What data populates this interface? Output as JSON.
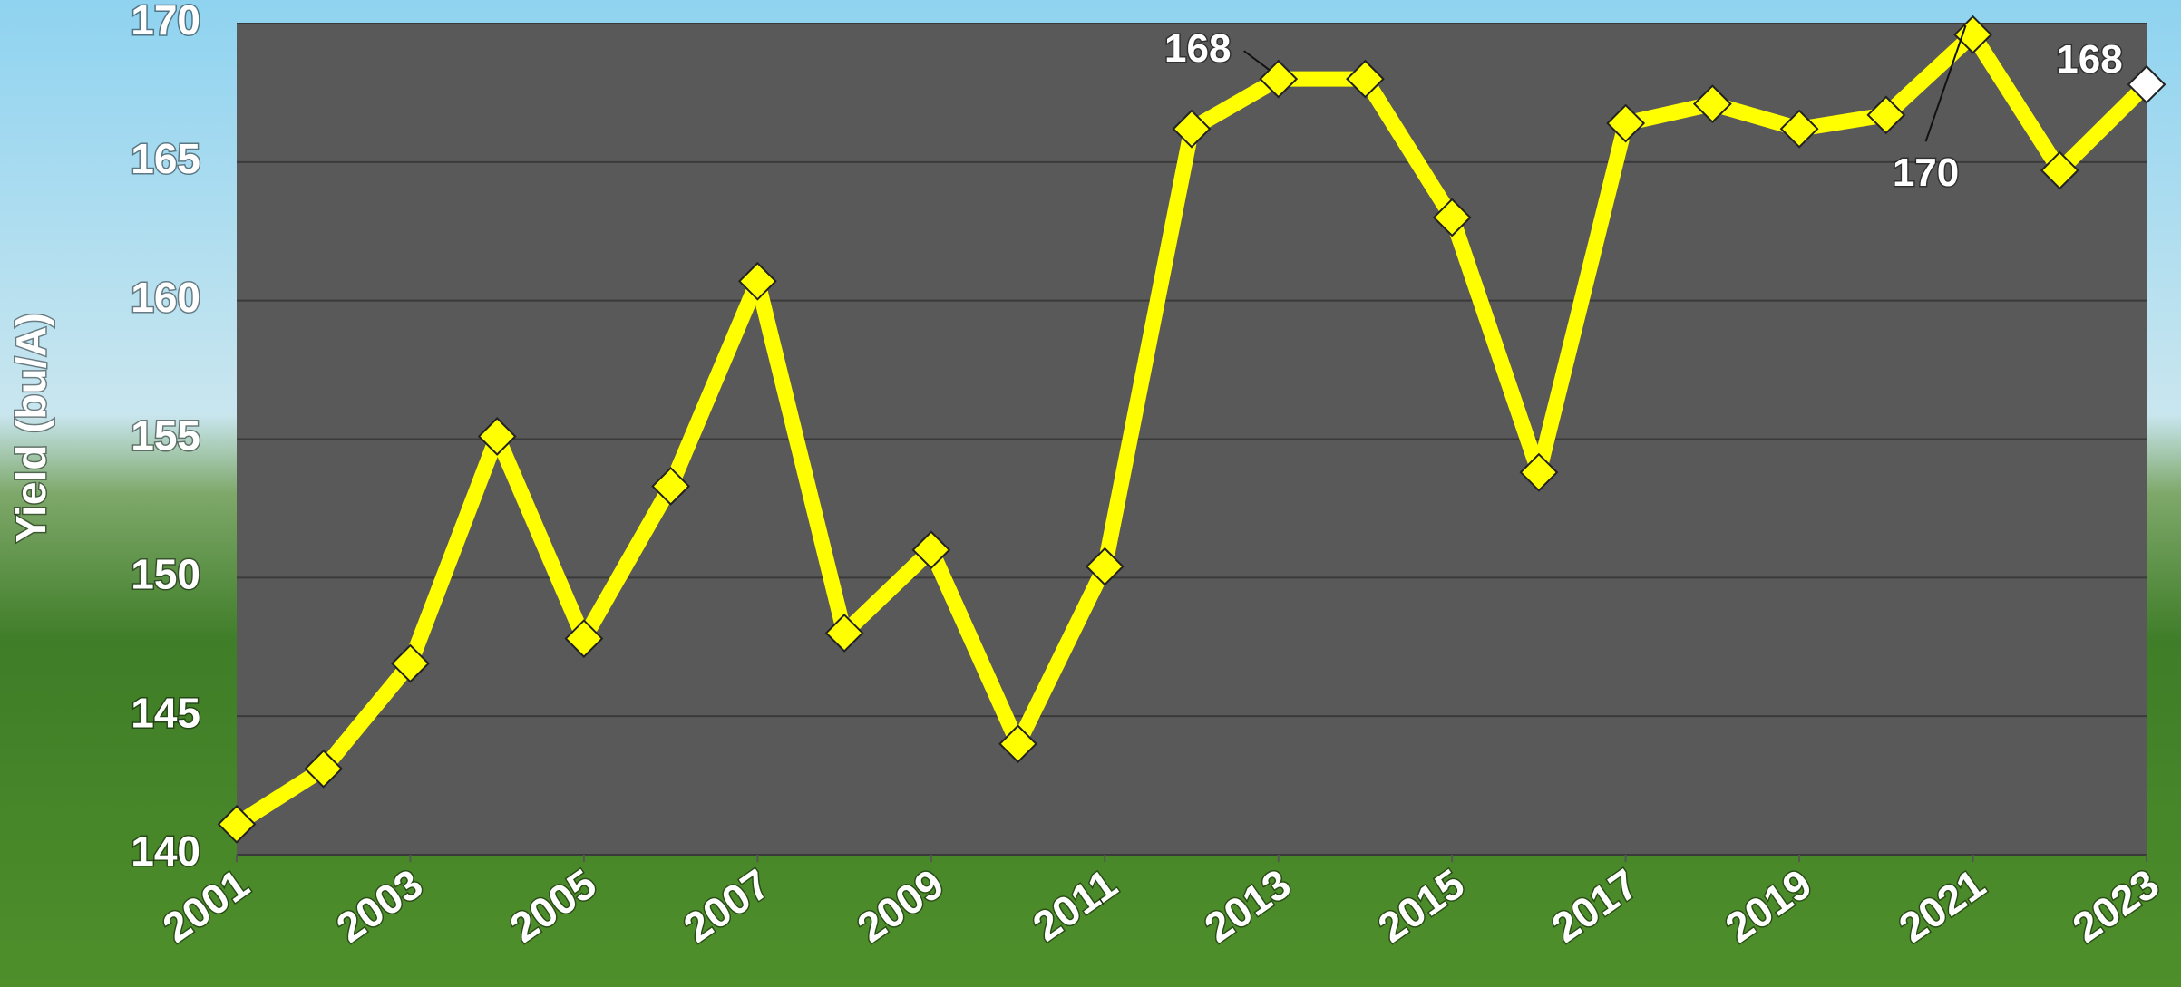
{
  "chart_data": {
    "type": "line",
    "y_label": "Yield (bu/A)",
    "x": [
      2001,
      2002,
      2003,
      2004,
      2005,
      2006,
      2007,
      2008,
      2009,
      2010,
      2011,
      2012,
      2013,
      2014,
      2015,
      2016,
      2017,
      2018,
      2019,
      2020,
      2021,
      2022,
      2023
    ],
    "xlim": [
      2001,
      2023
    ],
    "xticks": [
      2001,
      2003,
      2005,
      2007,
      2009,
      2011,
      2013,
      2015,
      2017,
      2019,
      2021,
      2023
    ],
    "ylim": [
      140,
      170
    ],
    "yticks": [
      140,
      145,
      150,
      155,
      160,
      165,
      170
    ],
    "grid": true,
    "series": [
      {
        "color": "#ffff00",
        "values": [
          141.1,
          143.1,
          146.9,
          155.1,
          147.8,
          153.3,
          160.7,
          148.0,
          151.0,
          144.0,
          150.4,
          166.2,
          168.0,
          168.0,
          163.0,
          153.8,
          166.4,
          167.1,
          166.2,
          166.7,
          169.6,
          164.7,
          167.8
        ],
        "value_labels": [
          null,
          null,
          null,
          null,
          null,
          null,
          null,
          null,
          null,
          null,
          null,
          null,
          "168",
          null,
          null,
          null,
          null,
          null,
          null,
          null,
          "170",
          null,
          "168"
        ],
        "marker_colors": [
          "#ffff00",
          "#ffff00",
          "#ffff00",
          "#ffff00",
          "#ffff00",
          "#ffff00",
          "#ffff00",
          "#ffff00",
          "#ffff00",
          "#ffff00",
          "#ffff00",
          "#ffff00",
          "#ffff00",
          "#ffff00",
          "#ffff00",
          "#ffff00",
          "#ffff00",
          "#ffff00",
          "#ffff00",
          "#ffff00",
          "#ffff00",
          "#ffff00",
          "#ffffff"
        ]
      }
    ]
  }
}
